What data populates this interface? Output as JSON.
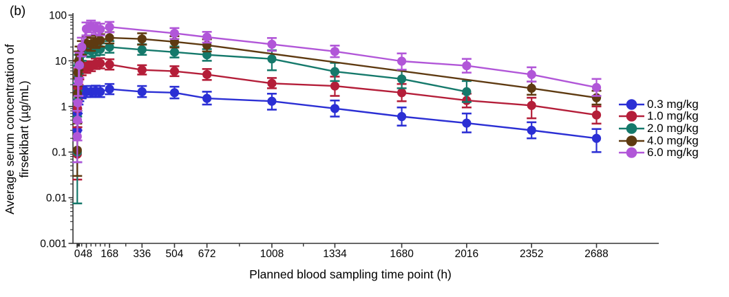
{
  "panel_label": "(b)",
  "chart_data": {
    "type": "line",
    "title": "",
    "xlabel": "Planned blood sampling time point (h)",
    "ylabel_line1": "Average serum concentration of",
    "ylabel_line2": "firsekibart (µg/mL)",
    "y_scale": "log",
    "ylim": [
      0.001,
      100
    ],
    "xlim": [
      0,
      3010
    ],
    "grid": false,
    "legend_position": "right",
    "y_ticks": [
      {
        "value": 100,
        "label": "100"
      },
      {
        "value": 10,
        "label": "10"
      },
      {
        "value": 1,
        "label": "1"
      },
      {
        "value": 0.1,
        "label": "0.1"
      },
      {
        "value": 0.01,
        "label": "0.01"
      },
      {
        "value": 0.001,
        "label": "0.001"
      }
    ],
    "x_ticks": [
      {
        "value": 0,
        "label": "0"
      },
      {
        "value": 48,
        "label": "48"
      },
      {
        "value": 168,
        "label": "168"
      },
      {
        "value": 336,
        "label": "336"
      },
      {
        "value": 504,
        "label": "504"
      },
      {
        "value": 672,
        "label": "672"
      },
      {
        "value": 1008,
        "label": "1008"
      },
      {
        "value": 1334,
        "label": "1334"
      },
      {
        "value": 1680,
        "label": "1680"
      },
      {
        "value": 2016,
        "label": "2016"
      },
      {
        "value": 2352,
        "label": "2352"
      },
      {
        "value": 2688,
        "label": "2688"
      }
    ],
    "x_minor_ticks": [
      2,
      4,
      8,
      12,
      24,
      72,
      96,
      120,
      144,
      252,
      840,
      1171
    ],
    "series": [
      {
        "name": "0.3 mg/kg",
        "color": "#2b2fd4",
        "points": [
          [
            1,
            0.3,
            0.06,
            0.9
          ],
          [
            2,
            0.7,
            0.3,
            1.4
          ],
          [
            4,
            1.2,
            0.7,
            1.9
          ],
          [
            8,
            1.6,
            1.1,
            2.3
          ],
          [
            12,
            1.8,
            1.3,
            2.5
          ],
          [
            24,
            2.0,
            1.5,
            2.7
          ],
          [
            48,
            2.1,
            1.6,
            2.8
          ],
          [
            72,
            2.1,
            1.6,
            2.8
          ],
          [
            96,
            2.15,
            1.65,
            2.85
          ],
          [
            120,
            2.1,
            1.6,
            2.8
          ],
          [
            168,
            2.4,
            1.85,
            3.1
          ],
          [
            336,
            2.1,
            1.6,
            2.8
          ],
          [
            504,
            2.0,
            1.5,
            2.7
          ],
          [
            672,
            1.5,
            1.1,
            2.1
          ],
          [
            1008,
            1.3,
            0.85,
            1.9
          ],
          [
            1334,
            0.9,
            0.6,
            1.35
          ],
          [
            1680,
            0.6,
            0.38,
            0.95
          ],
          [
            2016,
            0.43,
            0.27,
            0.7
          ],
          [
            2352,
            0.3,
            0.2,
            0.45
          ],
          [
            2688,
            0.2,
            0.1,
            0.32
          ]
        ]
      },
      {
        "name": "1.0 mg/kg",
        "color": "#b41e39",
        "points": [
          [
            1,
            0.09,
            0.025,
            0.35
          ],
          [
            2,
            0.9,
            0.35,
            2.2
          ],
          [
            4,
            2.6,
            1.4,
            4.6
          ],
          [
            8,
            4.5,
            3.0,
            6.6
          ],
          [
            12,
            5.5,
            3.9,
            7.7
          ],
          [
            24,
            6.4,
            4.8,
            8.5
          ],
          [
            48,
            7.0,
            5.4,
            9.1
          ],
          [
            72,
            7.6,
            5.9,
            9.8
          ],
          [
            96,
            8.6,
            6.6,
            11.2
          ],
          [
            120,
            8.8,
            6.8,
            11.4
          ],
          [
            168,
            8.3,
            6.4,
            10.8
          ],
          [
            336,
            6.3,
            5.0,
            8.0
          ],
          [
            504,
            5.9,
            4.6,
            7.6
          ],
          [
            672,
            5.0,
            3.8,
            6.6
          ],
          [
            1008,
            3.2,
            2.5,
            4.2
          ],
          [
            1334,
            2.8,
            1.7,
            4.5
          ],
          [
            1680,
            2.0,
            1.3,
            3.1
          ],
          [
            2016,
            1.35,
            0.95,
            1.9
          ],
          [
            2352,
            1.05,
            0.55,
            1.55
          ],
          [
            2688,
            0.65,
            0.42,
            1.0
          ]
        ]
      },
      {
        "name": "2.0 mg/kg",
        "color": "#15796b",
        "points": [
          [
            1,
            0.1,
            0.0075,
            0.6
          ],
          [
            2,
            1.3,
            0.45,
            3.2
          ],
          [
            4,
            4.2,
            2.2,
            7.8
          ],
          [
            8,
            8.5,
            5.2,
            13.5
          ],
          [
            12,
            11,
            7.5,
            16
          ],
          [
            24,
            14,
            10,
            19.5
          ],
          [
            48,
            17,
            12.5,
            23
          ],
          [
            72,
            16.5,
            12,
            22.5
          ],
          [
            96,
            17.5,
            13,
            23.5
          ],
          [
            120,
            18,
            13.5,
            24
          ],
          [
            168,
            20,
            15,
            27
          ],
          [
            336,
            17.5,
            13.5,
            23
          ],
          [
            504,
            15.5,
            11.8,
            20.5
          ],
          [
            672,
            13.5,
            10,
            18
          ],
          [
            1008,
            11,
            6.2,
            17
          ],
          [
            1334,
            5.8,
            3.6,
            9.0
          ],
          [
            1680,
            4.0,
            2.5,
            6.3
          ],
          [
            2016,
            2.1,
            1.25,
            3.6
          ]
        ]
      },
      {
        "name": "4.0 mg/kg",
        "color": "#5e3a11",
        "points": [
          [
            1,
            0.11,
            0.03,
            0.42
          ],
          [
            2,
            1.9,
            0.8,
            4.2
          ],
          [
            4,
            5.5,
            2.8,
            10
          ],
          [
            8,
            10,
            6.2,
            16
          ],
          [
            12,
            14,
            9.5,
            20.5
          ],
          [
            24,
            19,
            13.5,
            27
          ],
          [
            48,
            24,
            17.5,
            33
          ],
          [
            72,
            23,
            16.5,
            31.5
          ],
          [
            96,
            26,
            19,
            35
          ],
          [
            120,
            28,
            20.5,
            38
          ],
          [
            168,
            32,
            24,
            42.5
          ],
          [
            336,
            30,
            22.5,
            40
          ],
          [
            504,
            26,
            19.5,
            34.5
          ],
          [
            672,
            22,
            16,
            29.5
          ],
          [
            2352,
            2.5,
            1.8,
            3.5
          ],
          [
            2688,
            1.55,
            1.1,
            2.2
          ]
        ]
      },
      {
        "name": "6.0 mg/kg",
        "color": "#b156d8",
        "points": [
          [
            1,
            0.22,
            0.06,
            0.8
          ],
          [
            2,
            0.5,
            0.18,
            1.3
          ],
          [
            4,
            1.2,
            0.45,
            3.0
          ],
          [
            8,
            3.5,
            1.7,
            7.2
          ],
          [
            12,
            8,
            4.2,
            15
          ],
          [
            24,
            20,
            12.5,
            32
          ],
          [
            48,
            50,
            36,
            69
          ],
          [
            72,
            57,
            42,
            76
          ],
          [
            96,
            52,
            38,
            69
          ],
          [
            120,
            49,
            36,
            65
          ],
          [
            168,
            55,
            42,
            71
          ],
          [
            504,
            40,
            30,
            52
          ],
          [
            672,
            33,
            25,
            43
          ],
          [
            1008,
            23,
            16.5,
            31.5
          ],
          [
            1334,
            16,
            12,
            21.5
          ],
          [
            1680,
            9.8,
            6.4,
            14.5
          ],
          [
            2016,
            7.8,
            5.5,
            11
          ],
          [
            2352,
            5.0,
            3.5,
            7.2
          ],
          [
            2688,
            2.6,
            1.7,
            4.0
          ]
        ]
      }
    ]
  }
}
